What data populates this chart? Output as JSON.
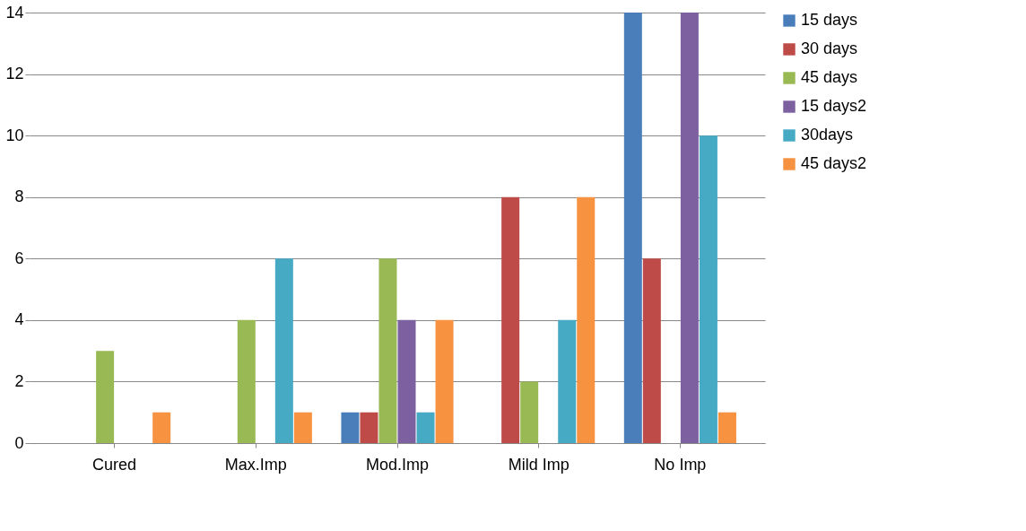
{
  "chart_data": {
    "type": "bar",
    "categories": [
      "Cured",
      "Max.Imp",
      "Mod.Imp",
      "Mild Imp",
      "No Imp"
    ],
    "series": [
      {
        "name": "15 days",
        "color": "#4a7ebb",
        "values": [
          0,
          0,
          1,
          0,
          14
        ]
      },
      {
        "name": "30 days",
        "color": "#be4b48",
        "values": [
          0,
          0,
          1,
          8,
          6
        ]
      },
      {
        "name": "45 days",
        "color": "#98b954",
        "values": [
          3,
          4,
          6,
          2,
          0
        ]
      },
      {
        "name": "15 days2",
        "color": "#7d60a0",
        "values": [
          0,
          0,
          4,
          0,
          14
        ]
      },
      {
        "name": "30days",
        "color": "#46aac5",
        "values": [
          0,
          6,
          1,
          4,
          10
        ]
      },
      {
        "name": "45 days2",
        "color": "#f69240",
        "values": [
          1,
          1,
          4,
          8,
          1
        ]
      }
    ],
    "ylim": [
      0,
      14
    ],
    "yticks": [
      0,
      2,
      4,
      6,
      8,
      10,
      12,
      14
    ],
    "grid": "y",
    "legend": "right"
  }
}
